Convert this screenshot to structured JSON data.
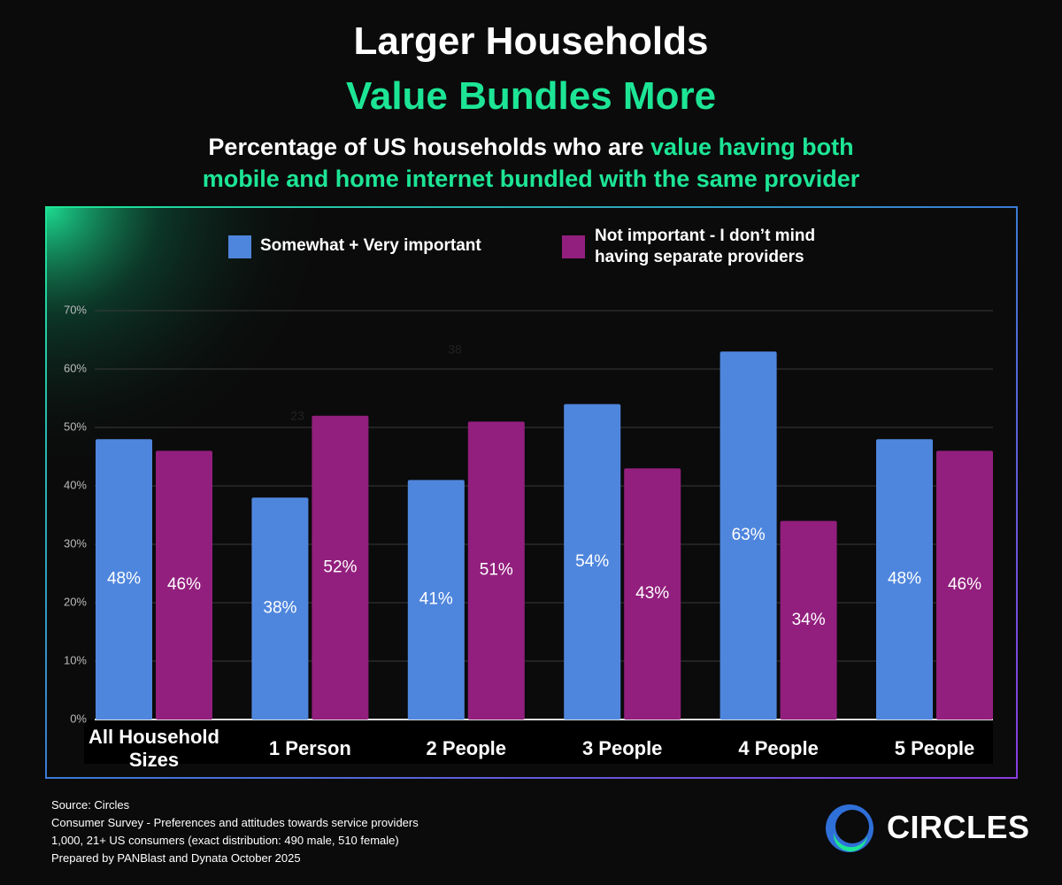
{
  "chart_data": {
    "type": "bar",
    "title": "Larger Households",
    "title_highlight": "Value Bundles More",
    "subtitle": "Percentage of US households who are ",
    "subtitle_highlight": "value having both mobile and home internet bundled with the same provider",
    "categories": [
      "All Household Sizes",
      "1 Person",
      "2 People",
      "3 People",
      "4 People",
      "5 People"
    ],
    "series": [
      {
        "name": "Somewhat + Very important",
        "color": "#4f86dd",
        "values": [
          48,
          38,
          41,
          54,
          63,
          48
        ],
        "value_labels": [
          "48%",
          "38%",
          "41%",
          "54%",
          "63%",
          "48%"
        ]
      },
      {
        "name": "Not important - I don’t mind having separate providers",
        "color": "#921f7d",
        "values": [
          46,
          52,
          51,
          43,
          34,
          46
        ],
        "value_labels": [
          "46%",
          "52%",
          "51%",
          "43%",
          "34%",
          "46%"
        ]
      }
    ],
    "ylim": [
      0,
      70
    ],
    "yticks": [
      {
        "value": 0,
        "label": "0%"
      },
      {
        "value": 10,
        "label": "10%"
      },
      {
        "value": 20,
        "label": "20%"
      },
      {
        "value": 30,
        "label": "30%"
      },
      {
        "value": 40,
        "label": "40%"
      },
      {
        "value": 50,
        "label": "50%"
      },
      {
        "value": 60,
        "label": "60%"
      },
      {
        "value": 70,
        "label": "70%"
      }
    ],
    "grid": true,
    "annotations": [
      "38",
      "23"
    ]
  },
  "footer": {
    "lines": [
      "Source: Circles",
      "Consumer Survey - Preferences and attitudes towards service providers",
      "1,000, 21+ US consumers (exact distribution: 490 male, 510 female)",
      "Prepared by PANBlast and Dynata October 2025"
    ],
    "logo": "CIRCLES"
  }
}
